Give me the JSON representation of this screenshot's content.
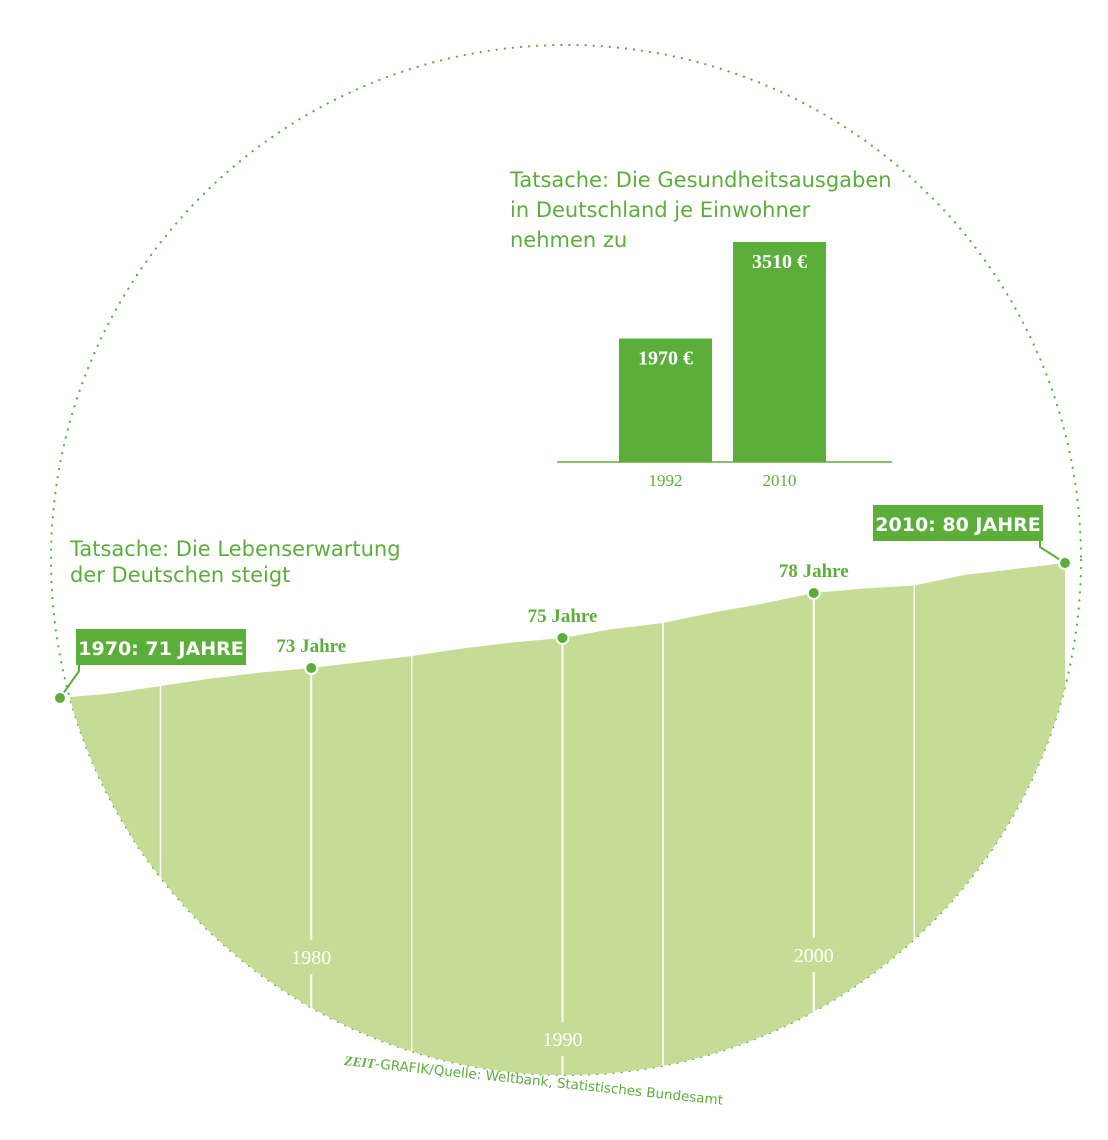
{
  "colors": {
    "accent": "#5cae3a",
    "area_fill": "#c5dc96",
    "text_green": "#5cae3a",
    "white": "#ffffff"
  },
  "chart_data": [
    {
      "type": "bar",
      "title": "Tatsache: Die Gesundheitsausgaben in Deutschland je Einwohner nehmen zu",
      "title_lines": [
        "Tatsache: Die Gesundheitsausgaben",
        "in Deutschland je Einwohner",
        "nehmen zu"
      ],
      "categories": [
        "1992",
        "2010"
      ],
      "values": [
        1970,
        3510
      ],
      "value_labels": [
        "1970 €",
        "3510 €"
      ],
      "unit": "€",
      "ylim": [
        0,
        3510
      ],
      "grid": false,
      "legend": "none"
    },
    {
      "type": "area",
      "title": "Tatsache: Die Lebenserwartung der Deutschen steigt",
      "title_lines": [
        "Tatsache: Die Lebenserwartung",
        "der Deutschen steigt"
      ],
      "x": [
        1970,
        1972,
        1974,
        1976,
        1978,
        1980,
        1982,
        1984,
        1986,
        1988,
        1990,
        1992,
        1994,
        1996,
        1998,
        2000,
        2002,
        2004,
        2006,
        2008,
        2010
      ],
      "y": [
        71.0,
        71.3,
        71.8,
        72.3,
        72.7,
        73.0,
        73.4,
        73.8,
        74.3,
        74.7,
        75.0,
        75.6,
        76.0,
        76.7,
        77.3,
        78.0,
        78.3,
        78.5,
        79.2,
        79.6,
        80.0
      ],
      "xlim": [
        1970,
        2010
      ],
      "ylim": [
        71,
        80
      ],
      "x_tick_labels": [
        "1980",
        "1990",
        "2000"
      ],
      "x_ticks": [
        1980,
        1990,
        2000
      ],
      "grid_years": [
        1974,
        1984,
        1994,
        2004
      ],
      "annotations": [
        {
          "year": 1970,
          "value": 71,
          "label": "1970: 71 JAHRE",
          "style": "box"
        },
        {
          "year": 1980,
          "value": 73,
          "label": "73 Jahre",
          "style": "text"
        },
        {
          "year": 1990,
          "value": 75,
          "label": "75 Jahre",
          "style": "text"
        },
        {
          "year": 2000,
          "value": 78,
          "label": "78 Jahre",
          "style": "text"
        },
        {
          "year": 2010,
          "value": 80,
          "label": "2010: 80 JAHRE",
          "style": "box"
        }
      ],
      "legend": "none"
    }
  ],
  "source": {
    "brand": "ZEIT",
    "text": "-GRAFIK/Quelle: Weltbank, Statistisches Bundesamt"
  }
}
